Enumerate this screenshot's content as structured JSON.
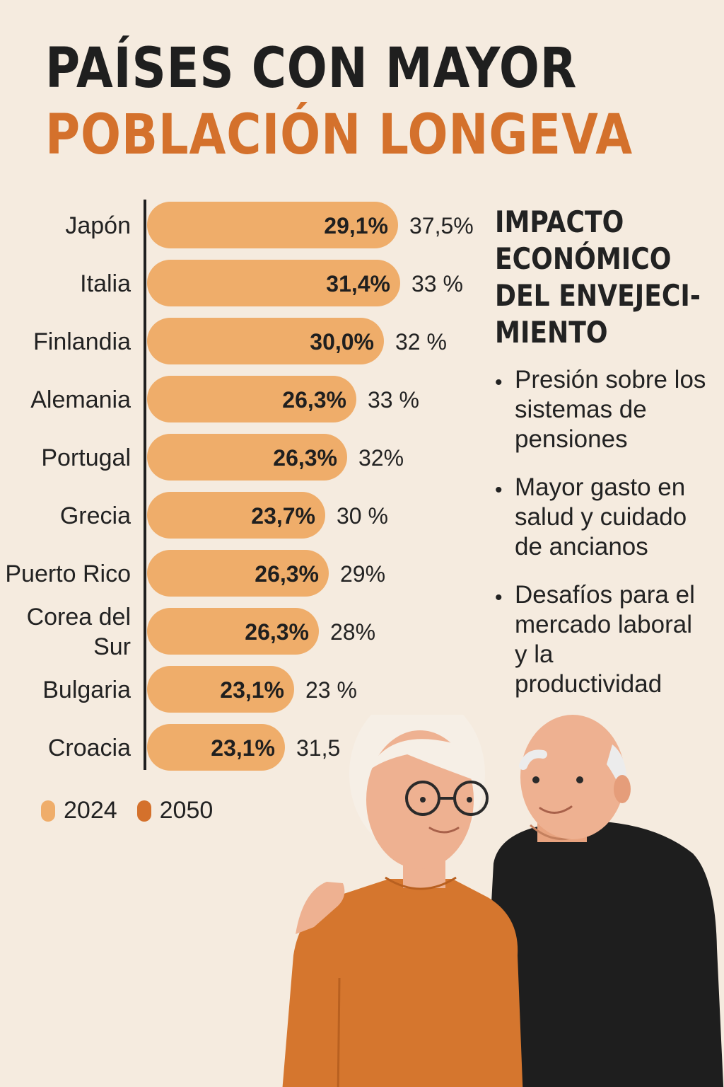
{
  "title": {
    "line1": "PAÍSES CON MAYOR",
    "line2": "POBLACIÓN LONGEVA"
  },
  "colors": {
    "bar2024": "#efad6a",
    "bar2050": "#d4712c",
    "background": "#f5ebdf",
    "accent": "#d4712c",
    "text": "#222222"
  },
  "chart_data": {
    "type": "bar",
    "orientation": "horizontal",
    "categories": [
      "Japón",
      "Italia",
      "Finlandia",
      "Alemania",
      "Portugal",
      "Grecia",
      "Puerto Rico",
      "Corea del Sur",
      "Bulgaria",
      "Croacia"
    ],
    "category_lines": [
      [
        "Japón"
      ],
      [
        "Italia"
      ],
      [
        "Finlandia"
      ],
      [
        "Alemania"
      ],
      [
        "Portugal"
      ],
      [
        "Grecia"
      ],
      [
        "Puerto Rico"
      ],
      [
        "Corea del",
        "Sur"
      ],
      [
        "Bulgaria"
      ],
      [
        "Croacia"
      ]
    ],
    "series": [
      {
        "name": "2024",
        "values": [
          29.1,
          31.4,
          30.0,
          26.3,
          26.3,
          23.7,
          26.3,
          26.3,
          23.1,
          23.1
        ],
        "labels": [
          "29,1%",
          "31,4%",
          "30,0%",
          "26,3%",
          "26,3%",
          "23,7%",
          "26,3%",
          "26,3%",
          "23,1%",
          "23,1%"
        ]
      },
      {
        "name": "2050",
        "values": [
          37.5,
          33,
          32,
          33,
          32,
          30,
          29,
          28,
          23,
          31.5
        ],
        "labels": [
          "37,5%",
          "33 %",
          "32 %",
          "33 %",
          "32%",
          "30 %",
          "29%",
          "28%",
          "23 %",
          "31,5"
        ]
      }
    ],
    "legend": {
      "position": "bottom-left",
      "items": [
        "2024",
        "2050"
      ]
    }
  },
  "side_panel": {
    "title_lines": [
      "IMPACTO",
      "ECONÓMICO",
      "DEL ENVEJECI-",
      "MIENTO"
    ],
    "bullet": "•",
    "points": [
      "Presión sobre los sistemas de pensiones",
      "Mayor gasto en salud y cuidado de ancianos",
      "Desafíos para el mercado laboral y la productividad"
    ]
  }
}
